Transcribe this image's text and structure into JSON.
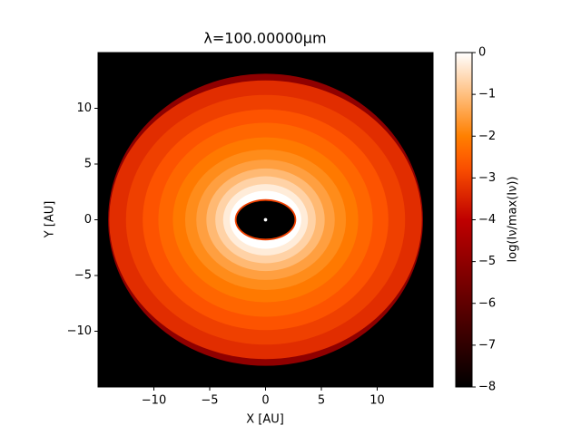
{
  "chart_data": {
    "type": "image",
    "title": "λ=100.00000μm",
    "xlabel": "X [AU]",
    "ylabel": "Y [AU]",
    "xlim": [
      -15,
      15
    ],
    "ylim": [
      -15,
      15
    ],
    "xticks": [
      {
        "value": -10,
        "label": "−10"
      },
      {
        "value": -5,
        "label": "−5"
      },
      0,
      5,
      10
    ],
    "yticks": [
      {
        "value": -10,
        "label": "−10"
      },
      {
        "value": -5,
        "label": "−5"
      },
      0,
      5,
      10
    ],
    "colormap": "gist_heat",
    "colorbar_label": "log(Iν/max(Iν))",
    "clim": [
      -8,
      0
    ],
    "colorbar_ticks": [
      0,
      {
        "value": -1,
        "label": "−1"
      },
      {
        "value": -2,
        "label": "−2"
      },
      {
        "value": -3,
        "label": "−3"
      },
      {
        "value": -4,
        "label": "−4"
      },
      {
        "value": -5,
        "label": "−5"
      },
      {
        "value": -6,
        "label": "−6"
      },
      {
        "value": -7,
        "label": "−7"
      },
      {
        "value": -8,
        "label": "−8"
      }
    ],
    "rings": [
      {
        "rx": 14.1,
        "ry": 13.1,
        "value": -5
      },
      {
        "rx": 14.0,
        "ry": 12.5,
        "value": -3.3
      },
      {
        "rx": 12.5,
        "ry": 11.2,
        "value": -3.0
      },
      {
        "rx": 11.0,
        "ry": 9.9,
        "value": -2.7
      },
      {
        "rx": 9.6,
        "ry": 8.7,
        "value": -2.4
      },
      {
        "rx": 8.3,
        "ry": 7.4,
        "value": -2.1
      },
      {
        "rx": 7.2,
        "ry": 6.3,
        "value": -1.8
      },
      {
        "rx": 6.2,
        "ry": 5.4,
        "value": -1.5
      },
      {
        "rx": 5.3,
        "ry": 4.6,
        "value": -1.1
      },
      {
        "rx": 4.5,
        "ry": 3.9,
        "value": -0.7
      },
      {
        "rx": 3.8,
        "ry": 3.2,
        "value": -0.3
      },
      {
        "rx": 3.2,
        "ry": 2.6,
        "value": 0
      },
      {
        "rx": 2.75,
        "ry": 1.85,
        "value": -3
      },
      {
        "rx": 2.6,
        "ry": 1.7,
        "value": -8
      },
      {
        "rx": 0.15,
        "ry": 0.15,
        "value": 0
      }
    ]
  }
}
